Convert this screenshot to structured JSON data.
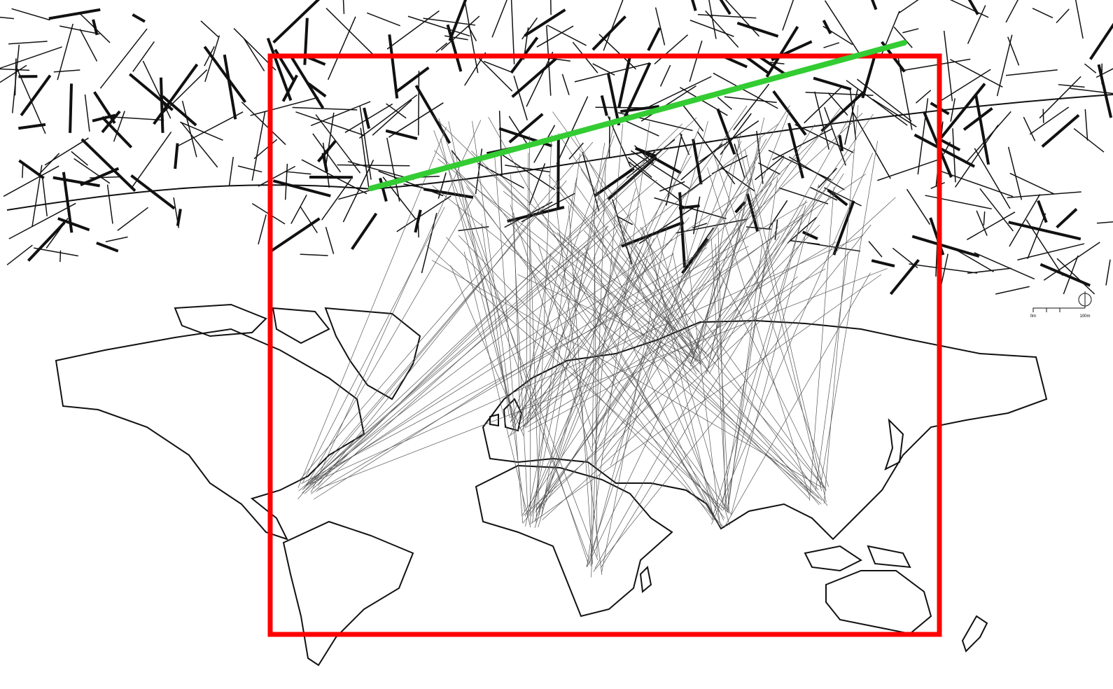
{
  "scale_bar": {
    "labels": [
      "0m",
      "100m"
    ]
  }
}
